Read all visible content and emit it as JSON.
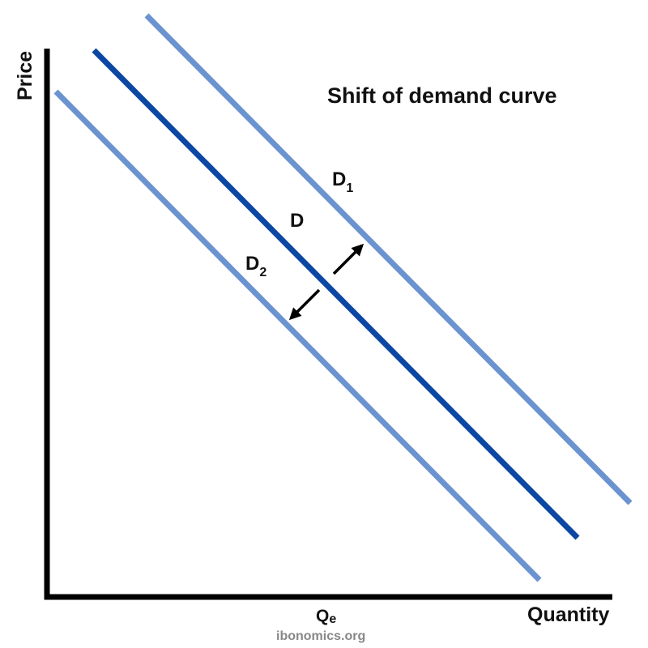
{
  "title": "Shift of demand curve",
  "axes": {
    "y_label": "Price",
    "x_label": "Quantity",
    "x_tick": {
      "base": "Q",
      "sub": "e"
    }
  },
  "curves": [
    {
      "id": "d",
      "label": "D",
      "sub": "",
      "color": "#0b47a3",
      "role": "original"
    },
    {
      "id": "d1",
      "label": "D",
      "sub": "1",
      "color": "#6a93cf",
      "role": "increase"
    },
    {
      "id": "d2",
      "label": "D",
      "sub": "2",
      "color": "#6a93cf",
      "role": "decrease"
    }
  ],
  "arrows": [
    {
      "direction": "right",
      "color": "#000000"
    },
    {
      "direction": "left",
      "color": "#000000"
    }
  ],
  "footer": "ibonomics.org",
  "axis_color": "#000000"
}
